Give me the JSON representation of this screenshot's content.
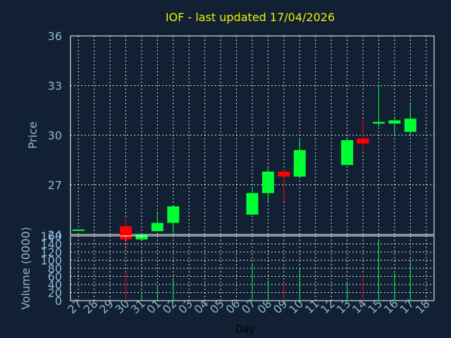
{
  "chart_data": {
    "type": "candlestick",
    "title": "IOF - last updated 17/04/2026",
    "colors": {
      "background": "#112033",
      "up": "#00ff33",
      "down": "#ff0000",
      "title": "#f0f000",
      "axis_text": "#8fb6d6",
      "grid": "#ffffff"
    },
    "x_categories": [
      "27",
      "28",
      "29",
      "30",
      "31",
      "01",
      "02",
      "03",
      "04",
      "05",
      "06",
      "07",
      "08",
      "09",
      "10",
      "11",
      "12",
      "13",
      "14",
      "15",
      "16",
      "17",
      "18"
    ],
    "xlabel": "Day",
    "price_panel": {
      "ylabel": "Price",
      "ylim": [
        24,
        36
      ],
      "yticks": [
        24,
        27,
        30,
        33,
        36
      ],
      "grid": true
    },
    "volume_panel": {
      "ylabel": "Volume (0000)",
      "ylim": [
        0,
        160
      ],
      "yticks": [
        0,
        20,
        40,
        60,
        80,
        100,
        120,
        140,
        160
      ],
      "grid": true
    },
    "candles": [
      {
        "day": "27",
        "open": 24.3,
        "high": 24.3,
        "low": 24.3,
        "close": 24.3
      },
      {
        "day": "30",
        "open": 24.5,
        "high": 25.0,
        "low": 23.0,
        "close": 23.7
      },
      {
        "day": "31",
        "open": 23.7,
        "high": 24.0,
        "low": 23.6,
        "close": 24.0
      },
      {
        "day": "01",
        "open": 24.2,
        "high": 25.4,
        "low": 24.2,
        "close": 24.7
      },
      {
        "day": "02",
        "open": 24.7,
        "high": 25.7,
        "low": 24.0,
        "close": 25.7
      },
      {
        "day": "07",
        "open": 25.2,
        "high": 26.9,
        "low": 25.2,
        "close": 26.5
      },
      {
        "day": "08",
        "open": 26.5,
        "high": 28.0,
        "low": 26.0,
        "close": 27.8
      },
      {
        "day": "09",
        "open": 27.8,
        "high": 27.9,
        "low": 26.0,
        "close": 27.5
      },
      {
        "day": "10",
        "open": 27.5,
        "high": 29.8,
        "low": 27.5,
        "close": 29.1
      },
      {
        "day": "13",
        "open": 28.2,
        "high": 29.9,
        "low": 28.2,
        "close": 29.7
      },
      {
        "day": "14",
        "open": 29.8,
        "high": 31.0,
        "low": 29.0,
        "close": 29.5
      },
      {
        "day": "15",
        "open": 30.7,
        "high": 33.0,
        "low": 30.5,
        "close": 30.8
      },
      {
        "day": "16",
        "open": 30.7,
        "high": 31.0,
        "low": 30.0,
        "close": 30.9
      },
      {
        "day": "17",
        "open": 30.2,
        "high": 32.0,
        "low": 30.0,
        "close": 31.0
      }
    ],
    "volume": [
      {
        "day": "30",
        "value": 70,
        "direction": "down"
      },
      {
        "day": "31",
        "value": 22,
        "direction": "up"
      },
      {
        "day": "01",
        "value": 38,
        "direction": "up"
      },
      {
        "day": "02",
        "value": 55,
        "direction": "up"
      },
      {
        "day": "07",
        "value": 92,
        "direction": "up"
      },
      {
        "day": "08",
        "value": 50,
        "direction": "up"
      },
      {
        "day": "09",
        "value": 45,
        "direction": "down"
      },
      {
        "day": "10",
        "value": 82,
        "direction": "up"
      },
      {
        "day": "13",
        "value": 45,
        "direction": "up"
      },
      {
        "day": "14",
        "value": 63,
        "direction": "down"
      },
      {
        "day": "15",
        "value": 148,
        "direction": "up"
      },
      {
        "day": "16",
        "value": 68,
        "direction": "up"
      },
      {
        "day": "17",
        "value": 95,
        "direction": "up"
      }
    ]
  }
}
